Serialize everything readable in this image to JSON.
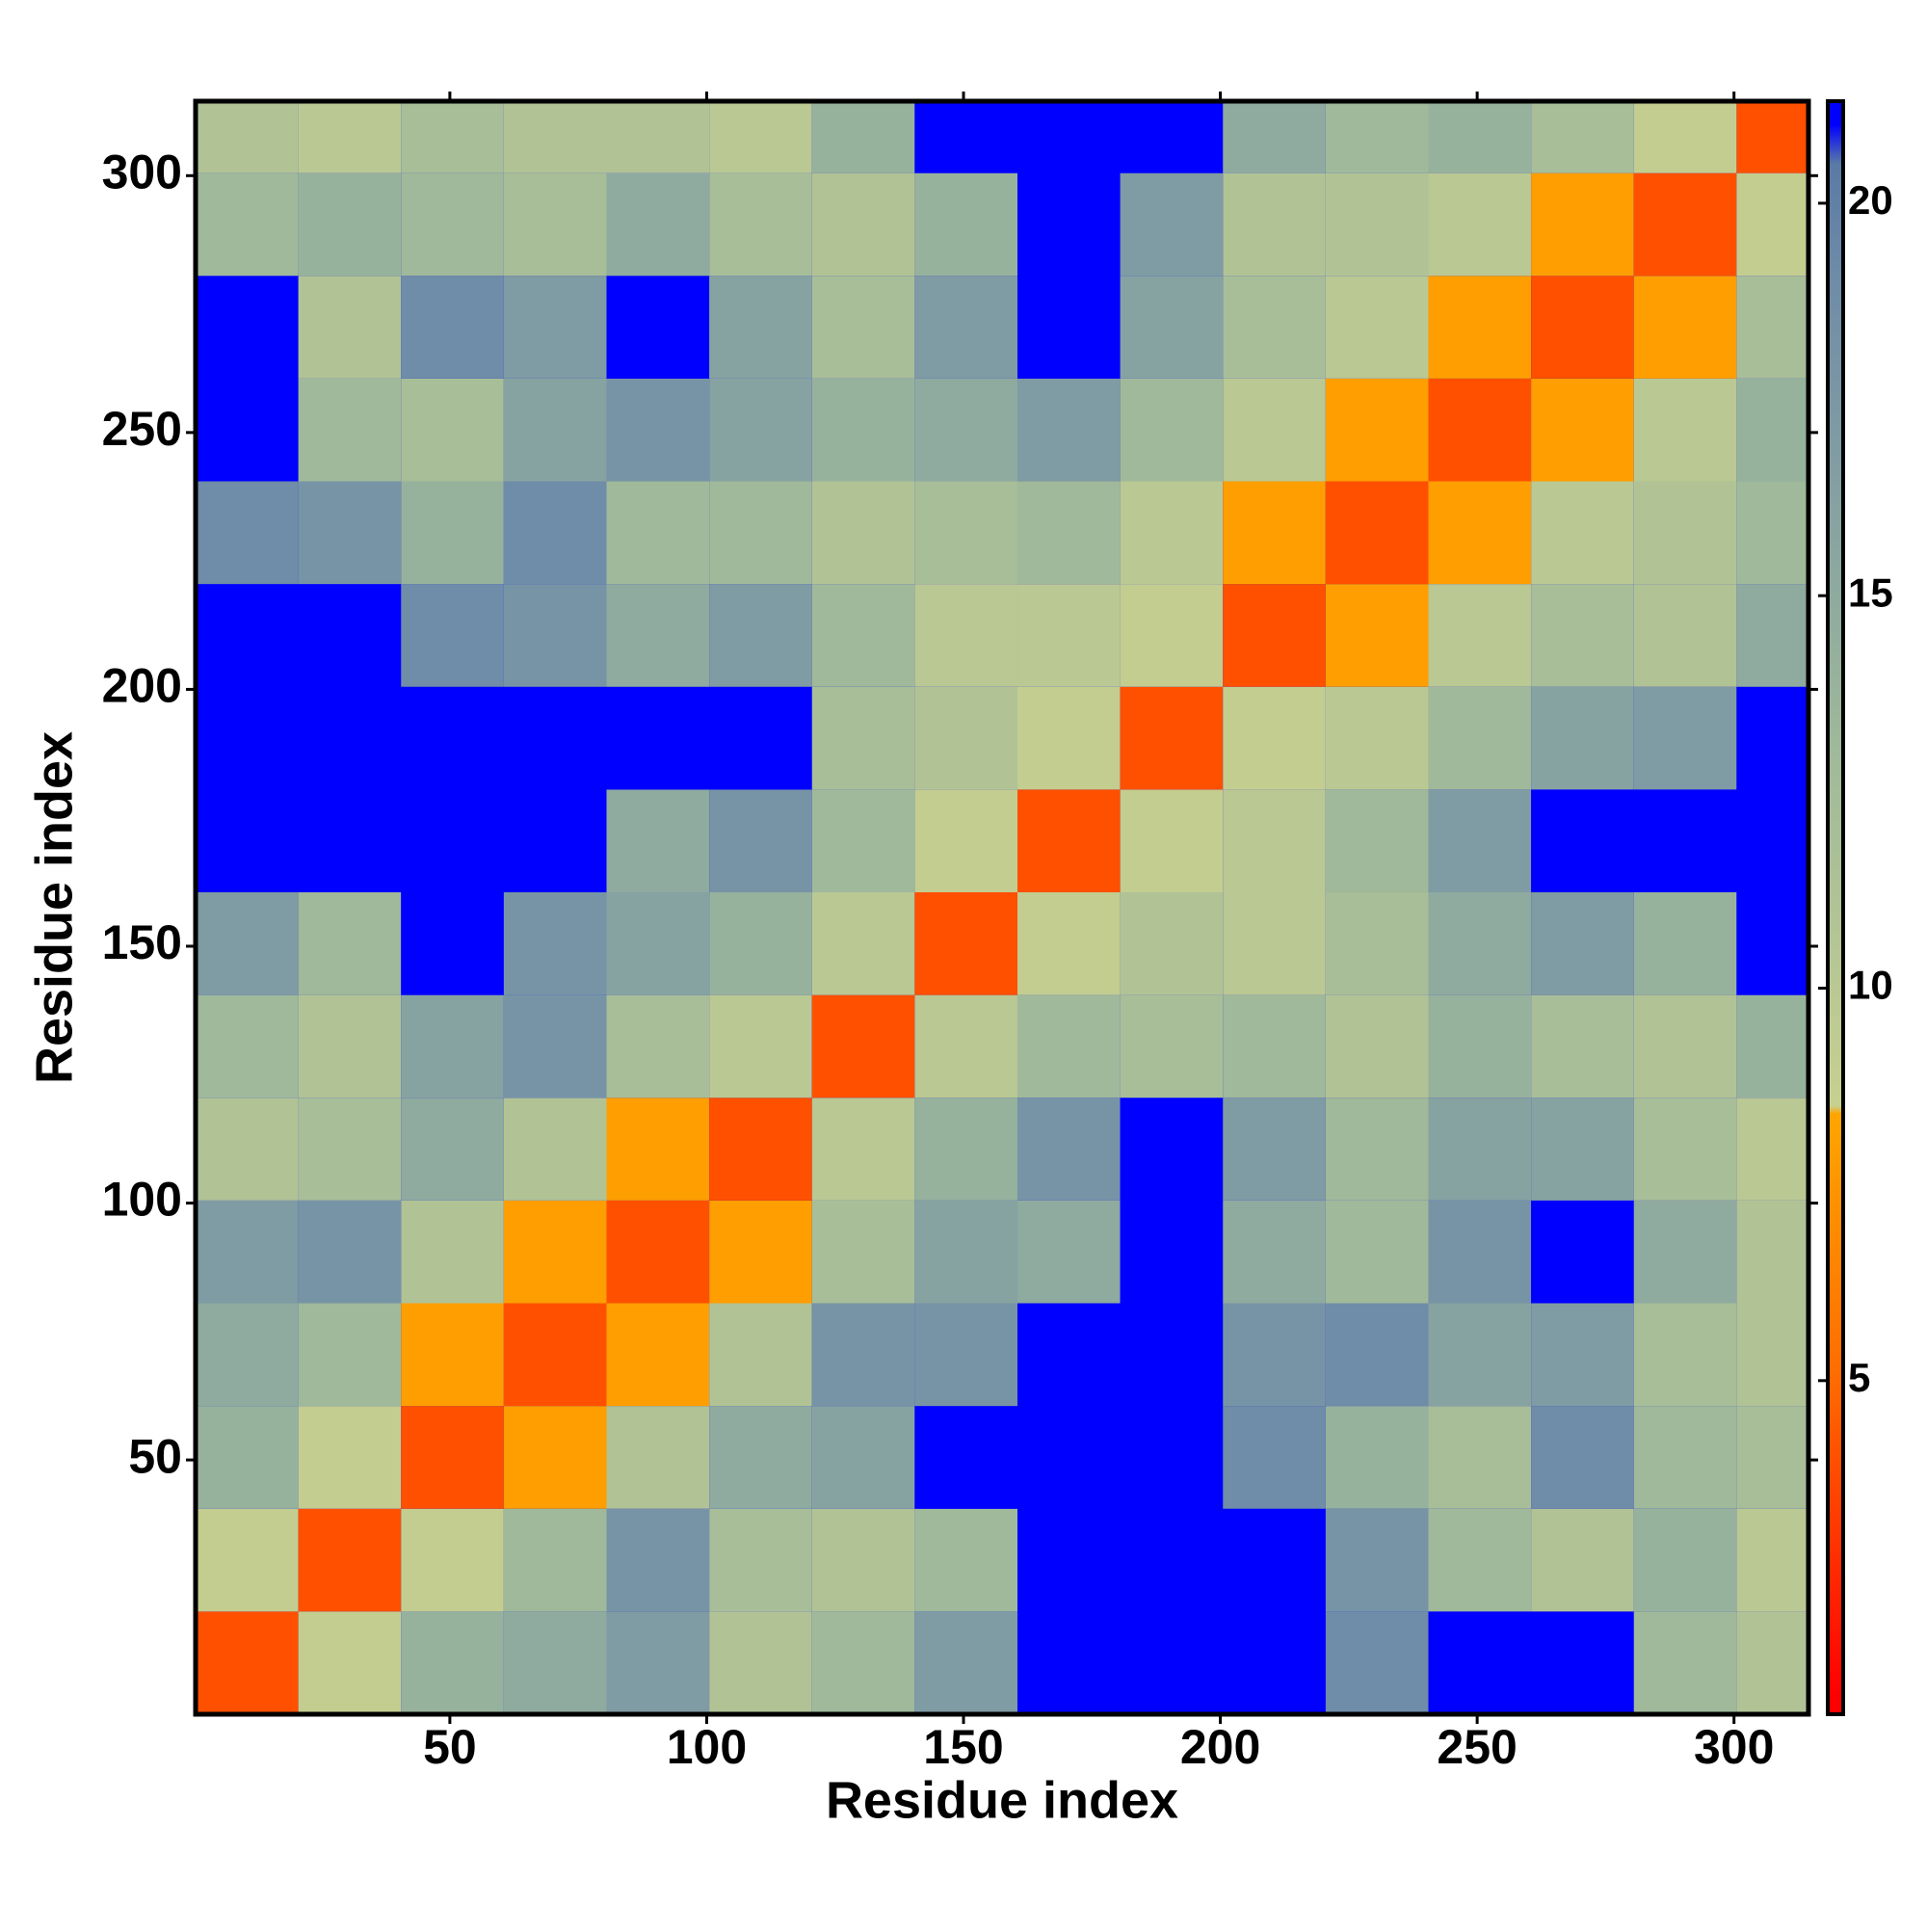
{
  "chart_data": {
    "type": "heatmap",
    "xlabel": "Residue index",
    "ylabel": "Residue index",
    "xbins": [
      0.5,
      20.5,
      40.5,
      60.5,
      80.5,
      100.5,
      120.5,
      140.5,
      160.5,
      180.5,
      200.5,
      220.5,
      240.5,
      260.5,
      280.5,
      300.5,
      314.5
    ],
    "ybins": [
      0.5,
      20.5,
      40.5,
      60.5,
      80.5,
      100.5,
      120.5,
      140.5,
      160.5,
      180.5,
      200.5,
      220.5,
      240.5,
      260.5,
      280.5,
      300.5,
      314.5
    ],
    "z": [
      [
        4,
        9,
        14,
        15,
        17,
        11,
        13,
        17,
        21,
        21,
        21,
        19,
        21,
        21,
        13,
        11
      ],
      [
        9,
        4,
        9,
        13,
        18,
        12,
        11,
        13,
        21,
        21,
        21,
        18,
        13,
        11,
        14,
        10
      ],
      [
        14,
        9,
        4,
        8,
        11,
        15,
        16,
        21,
        21,
        21,
        19,
        14,
        12,
        19,
        13,
        12
      ],
      [
        15,
        13,
        8,
        4,
        8,
        11,
        18,
        18,
        21,
        21,
        18,
        19,
        16,
        17,
        12,
        11
      ],
      [
        17,
        18,
        11,
        8,
        4,
        8,
        12,
        16,
        15,
        21,
        15,
        13,
        18,
        21,
        15,
        11
      ],
      [
        11,
        12,
        15,
        11,
        8,
        4,
        10,
        14,
        18,
        21,
        17,
        13,
        16,
        16,
        12,
        10
      ],
      [
        13,
        11,
        16,
        18,
        12,
        10,
        4,
        10,
        13,
        12,
        13,
        11,
        14,
        12,
        11,
        14
      ],
      [
        17,
        13,
        21,
        18,
        16,
        14,
        10,
        4,
        9,
        11,
        10,
        12,
        15,
        17,
        14,
        21
      ],
      [
        21,
        21,
        21,
        21,
        15,
        18,
        13,
        9,
        4,
        9,
        10,
        13,
        17,
        21,
        21,
        21
      ],
      [
        21,
        21,
        21,
        21,
        21,
        21,
        12,
        11,
        9,
        4,
        9,
        10,
        13,
        16,
        17,
        21
      ],
      [
        21,
        21,
        19,
        18,
        15,
        17,
        13,
        10,
        10,
        9,
        4,
        8,
        10,
        12,
        11,
        15
      ],
      [
        19,
        18,
        14,
        19,
        13,
        13,
        11,
        12,
        13,
        10,
        8,
        4,
        8,
        10,
        11,
        13
      ],
      [
        21,
        13,
        12,
        16,
        18,
        16,
        14,
        15,
        17,
        13,
        10,
        8,
        4,
        8,
        10,
        14
      ],
      [
        21,
        11,
        19,
        17,
        21,
        16,
        12,
        17,
        21,
        16,
        12,
        10,
        8,
        4,
        8,
        12
      ],
      [
        13,
        14,
        13,
        12,
        15,
        12,
        11,
        14,
        21,
        17,
        11,
        11,
        10,
        8,
        4,
        9
      ],
      [
        11,
        10,
        12,
        11,
        11,
        10,
        14,
        21,
        21,
        21,
        15,
        13,
        14,
        12,
        9,
        4
      ]
    ],
    "xlim": [
      0.5,
      314.5
    ],
    "ylim": [
      0.5,
      314.5
    ],
    "xticks": [
      50,
      100,
      150,
      200,
      250,
      300
    ],
    "yticks": [
      50,
      100,
      150,
      200,
      250,
      300
    ],
    "colorbar": {
      "lim": [
        0.75,
        21.3
      ],
      "ticks": [
        5,
        10,
        15,
        20
      ],
      "colorscale": [
        [
          1,
          "#ff0000"
        ],
        [
          5,
          "#ff6a00"
        ],
        [
          8.4,
          "#ffa500"
        ],
        [
          8.5,
          "#c7d08f"
        ],
        [
          13,
          "#9fb99a"
        ],
        [
          19,
          "#6f8ca8"
        ],
        [
          20.5,
          "#5a7aa6"
        ],
        [
          21,
          "#0000ff"
        ]
      ]
    }
  }
}
